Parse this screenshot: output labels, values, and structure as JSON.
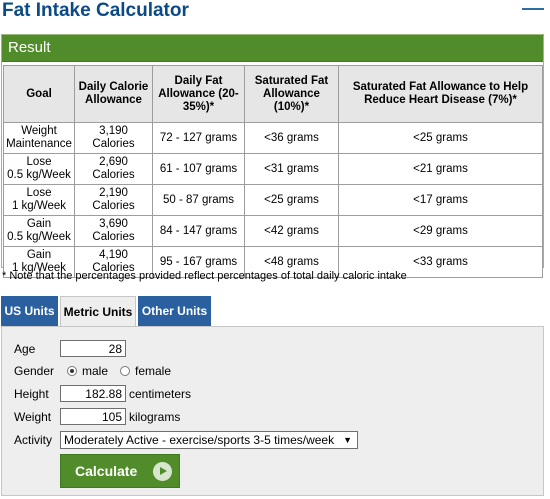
{
  "page": {
    "title": "Fat Intake Calculator"
  },
  "result": {
    "header": "Result",
    "columns": [
      "Goal",
      "Daily Calorie Allowance",
      "Daily Fat Allowance (20-35%)*",
      "Saturated Fat Allowance (10%)*",
      "Saturated Fat Allowance to Help Reduce Heart Disease (7%)*"
    ],
    "rows": [
      {
        "goal1": "Weight",
        "goal2": "Maintenance",
        "cal1": "3,190",
        "cal2": "Calories",
        "fat": "72 - 127 grams",
        "sat": "<36 grams",
        "heart": "<25 grams"
      },
      {
        "goal1": "Lose",
        "goal2": "0.5 kg/Week",
        "cal1": "2,690",
        "cal2": "Calories",
        "fat": "61 - 107 grams",
        "sat": "<31 grams",
        "heart": "<21 grams"
      },
      {
        "goal1": "Lose",
        "goal2": "1 kg/Week",
        "cal1": "2,190",
        "cal2": "Calories",
        "fat": "50 - 87 grams",
        "sat": "<25 grams",
        "heart": "<17 grams"
      },
      {
        "goal1": "Gain",
        "goal2": "0.5 kg/Week",
        "cal1": "3,690",
        "cal2": "Calories",
        "fat": "84 - 147 grams",
        "sat": "<42 grams",
        "heart": "<29 grams"
      },
      {
        "goal1": "Gain",
        "goal2": "1 kg/Week",
        "cal1": "4,190",
        "cal2": "Calories",
        "fat": "95 - 167 grams",
        "sat": "<48 grams",
        "heart": "<33 grams"
      }
    ],
    "footnote": "* Note that the percentages provided reflect percentages of total daily caloric intake"
  },
  "tabs": {
    "us": "US Units",
    "metric": "Metric Units",
    "other": "Other Units",
    "active": "Metric Units"
  },
  "form": {
    "age_label": "Age",
    "age_value": "28",
    "gender_label": "Gender",
    "gender_male": "male",
    "gender_female": "female",
    "gender_selected": "male",
    "height_label": "Height",
    "height_value": "182.88",
    "height_unit": "centimeters",
    "weight_label": "Weight",
    "weight_value": "105",
    "weight_unit": "kilograms",
    "activity_label": "Activity",
    "activity_value": "Moderately Active - exercise/sports 3-5 times/week",
    "calculate_label": "Calculate"
  },
  "colors": {
    "title": "#0b4a84",
    "green": "#518c2a",
    "blue_tab": "#2a60a0"
  }
}
